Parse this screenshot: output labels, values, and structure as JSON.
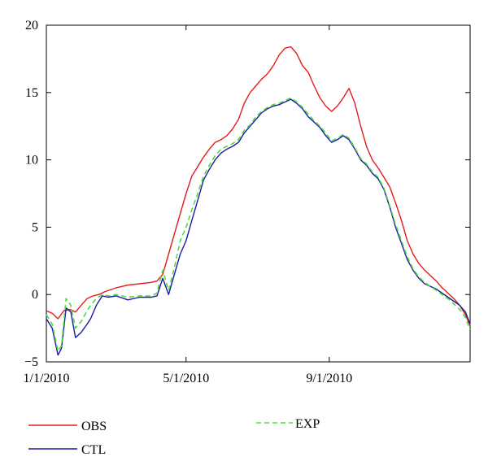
{
  "chart_data": {
    "type": "line",
    "title": "",
    "xlabel": "",
    "ylabel": "",
    "xlim": [
      "2010-01-01",
      "2010-12-31"
    ],
    "ylim": [
      -5,
      20
    ],
    "x_ticks": [
      "1/1/2010",
      "5/1/2010",
      "9/1/2010"
    ],
    "y_ticks": [
      "20",
      "15",
      "10",
      "5",
      "0",
      "−5"
    ],
    "grid": false,
    "legend_placement": "bottom",
    "series": [
      {
        "name": "OBS",
        "color": "#e41a1c",
        "style": "solid",
        "x": [
          "2010-01-01",
          "2010-01-06",
          "2010-01-11",
          "2010-01-16",
          "2010-01-21",
          "2010-01-26",
          "2010-01-31",
          "2010-02-05",
          "2010-02-10",
          "2010-02-15",
          "2010-02-20",
          "2010-03-02",
          "2010-03-12",
          "2010-03-22",
          "2010-04-01",
          "2010-04-06",
          "2010-04-11",
          "2010-04-16",
          "2010-04-21",
          "2010-04-26",
          "2010-05-01",
          "2010-05-06",
          "2010-05-11",
          "2010-05-16",
          "2010-05-21",
          "2010-05-26",
          "2010-05-31",
          "2010-06-05",
          "2010-06-10",
          "2010-06-15",
          "2010-06-20",
          "2010-06-25",
          "2010-06-30",
          "2010-07-05",
          "2010-07-10",
          "2010-07-15",
          "2010-07-20",
          "2010-07-25",
          "2010-07-30",
          "2010-08-04",
          "2010-08-09",
          "2010-08-14",
          "2010-08-19",
          "2010-08-24",
          "2010-08-29",
          "2010-09-03",
          "2010-09-08",
          "2010-09-13",
          "2010-09-18",
          "2010-09-23",
          "2010-09-28",
          "2010-10-03",
          "2010-10-08",
          "2010-10-13",
          "2010-10-18",
          "2010-10-23",
          "2010-10-28",
          "2010-11-02",
          "2010-11-07",
          "2010-11-12",
          "2010-11-17",
          "2010-11-22",
          "2010-11-27",
          "2010-12-02",
          "2010-12-07",
          "2010-12-12",
          "2010-12-17",
          "2010-12-22",
          "2010-12-27",
          "2010-12-31"
        ],
        "values": [
          -1.2,
          -1.4,
          -1.8,
          -1.2,
          -1.1,
          -1.3,
          -0.8,
          -0.3,
          -0.1,
          0.0,
          0.2,
          0.5,
          0.7,
          0.8,
          0.9,
          1.0,
          1.5,
          3.0,
          4.5,
          6.0,
          7.5,
          8.8,
          9.5,
          10.2,
          10.8,
          11.3,
          11.5,
          11.8,
          12.3,
          13.0,
          14.2,
          15.0,
          15.5,
          16.0,
          16.4,
          17.0,
          17.8,
          18.3,
          18.4,
          17.9,
          17.0,
          16.5,
          15.5,
          14.6,
          14.0,
          13.6,
          14.0,
          14.6,
          15.3,
          14.2,
          12.5,
          11.0,
          10.0,
          9.4,
          8.7,
          8.0,
          6.8,
          5.5,
          4.0,
          3.0,
          2.3,
          1.8,
          1.4,
          1.0,
          0.5,
          0.1,
          -0.3,
          -0.8,
          -1.5,
          -2.3
        ]
      },
      {
        "name": "CTL",
        "color": "#1a1aa6",
        "style": "solid",
        "x": [
          "2010-01-01",
          "2010-01-06",
          "2010-01-11",
          "2010-01-14",
          "2010-01-18",
          "2010-01-22",
          "2010-01-26",
          "2010-01-31",
          "2010-02-05",
          "2010-02-08",
          "2010-02-13",
          "2010-02-18",
          "2010-02-23",
          "2010-03-02",
          "2010-03-12",
          "2010-03-22",
          "2010-04-01",
          "2010-04-06",
          "2010-04-11",
          "2010-04-16",
          "2010-04-21",
          "2010-04-26",
          "2010-05-01",
          "2010-05-06",
          "2010-05-11",
          "2010-05-16",
          "2010-05-21",
          "2010-05-26",
          "2010-05-31",
          "2010-06-05",
          "2010-06-10",
          "2010-06-15",
          "2010-06-20",
          "2010-06-25",
          "2010-06-30",
          "2010-07-05",
          "2010-07-10",
          "2010-07-15",
          "2010-07-20",
          "2010-07-25",
          "2010-07-30",
          "2010-08-04",
          "2010-08-09",
          "2010-08-14",
          "2010-08-19",
          "2010-08-24",
          "2010-08-29",
          "2010-09-03",
          "2010-09-08",
          "2010-09-13",
          "2010-09-18",
          "2010-09-23",
          "2010-09-28",
          "2010-10-03",
          "2010-10-08",
          "2010-10-13",
          "2010-10-18",
          "2010-10-23",
          "2010-10-28",
          "2010-11-02",
          "2010-11-07",
          "2010-11-12",
          "2010-11-17",
          "2010-11-22",
          "2010-11-27",
          "2010-12-02",
          "2010-12-07",
          "2010-12-12",
          "2010-12-17",
          "2010-12-22",
          "2010-12-27",
          "2010-12-31"
        ],
        "values": [
          -1.8,
          -2.5,
          -4.5,
          -4.0,
          -1.0,
          -1.3,
          -3.2,
          -2.8,
          -2.2,
          -1.8,
          -0.8,
          -0.1,
          -0.2,
          -0.1,
          -0.4,
          -0.2,
          -0.2,
          -0.1,
          1.2,
          0.0,
          1.5,
          3.0,
          4.0,
          5.5,
          7.0,
          8.5,
          9.3,
          10.0,
          10.5,
          10.8,
          11.0,
          11.3,
          12.0,
          12.5,
          13.0,
          13.5,
          13.8,
          14.0,
          14.1,
          14.3,
          14.5,
          14.2,
          13.8,
          13.2,
          12.8,
          12.4,
          11.8,
          11.3,
          11.5,
          11.8,
          11.5,
          10.8,
          10.0,
          9.6,
          9.0,
          8.6,
          7.8,
          6.5,
          5.0,
          3.8,
          2.6,
          1.8,
          1.2,
          0.8,
          0.6,
          0.4,
          0.1,
          -0.2,
          -0.5,
          -0.8,
          -1.3,
          -2.2
        ]
      },
      {
        "name": "EXP",
        "color": "#4ddd3a",
        "style": "dashed",
        "x": [
          "2010-01-01",
          "2010-01-06",
          "2010-01-11",
          "2010-01-14",
          "2010-01-18",
          "2010-01-22",
          "2010-01-26",
          "2010-01-31",
          "2010-02-05",
          "2010-02-08",
          "2010-02-13",
          "2010-02-18",
          "2010-02-23",
          "2010-03-02",
          "2010-03-12",
          "2010-03-22",
          "2010-04-01",
          "2010-04-06",
          "2010-04-11",
          "2010-04-16",
          "2010-04-21",
          "2010-04-26",
          "2010-05-01",
          "2010-05-06",
          "2010-05-11",
          "2010-05-16",
          "2010-05-21",
          "2010-05-26",
          "2010-05-31",
          "2010-06-05",
          "2010-06-10",
          "2010-06-15",
          "2010-06-20",
          "2010-06-25",
          "2010-06-30",
          "2010-07-05",
          "2010-07-10",
          "2010-07-15",
          "2010-07-20",
          "2010-07-25",
          "2010-07-30",
          "2010-08-04",
          "2010-08-09",
          "2010-08-14",
          "2010-08-19",
          "2010-08-24",
          "2010-08-29",
          "2010-09-03",
          "2010-09-08",
          "2010-09-13",
          "2010-09-18",
          "2010-09-23",
          "2010-09-28",
          "2010-10-03",
          "2010-10-08",
          "2010-10-13",
          "2010-10-18",
          "2010-10-23",
          "2010-10-28",
          "2010-11-02",
          "2010-11-07",
          "2010-11-12",
          "2010-11-17",
          "2010-11-22",
          "2010-11-27",
          "2010-12-02",
          "2010-12-07",
          "2010-12-12",
          "2010-12-17",
          "2010-12-22",
          "2010-12-27",
          "2010-12-31"
        ],
        "values": [
          -1.5,
          -2.2,
          -4.2,
          -3.8,
          -0.3,
          -0.8,
          -2.5,
          -2.0,
          -1.2,
          -0.8,
          -0.3,
          0.0,
          -0.1,
          0.0,
          -0.2,
          -0.1,
          -0.1,
          0.1,
          1.8,
          0.3,
          2.0,
          4.0,
          5.0,
          6.3,
          7.5,
          8.8,
          9.6,
          10.3,
          10.8,
          11.0,
          11.2,
          11.5,
          12.2,
          12.6,
          13.2,
          13.6,
          13.9,
          14.1,
          14.2,
          14.4,
          14.6,
          14.3,
          13.9,
          13.4,
          12.9,
          12.5,
          12.0,
          11.4,
          11.6,
          11.9,
          11.6,
          10.9,
          10.1,
          9.7,
          9.1,
          8.7,
          7.9,
          6.6,
          5.2,
          4.0,
          2.8,
          1.9,
          1.3,
          0.9,
          0.6,
          0.3,
          0.0,
          -0.3,
          -0.7,
          -1.1,
          -1.7,
          -2.6
        ]
      }
    ]
  }
}
